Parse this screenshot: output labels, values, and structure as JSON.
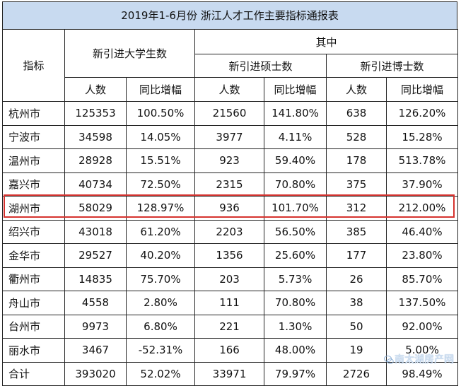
{
  "title": "2019年1-6月份 浙江人才工作主要指标通报表",
  "headers": {
    "indicator": "指标",
    "undergrad": "新引进大学生数",
    "of_which": "其中",
    "master": "新引进硕士数",
    "phd": "新引进博士数",
    "count": "人数",
    "yoy": "同比增幅"
  },
  "rows": [
    {
      "city": "杭州市",
      "ug": "125353",
      "ug_yoy": "100.50%",
      "ms": "21560",
      "ms_yoy": "141.80%",
      "phd": "638",
      "phd_yoy": "126.20%"
    },
    {
      "city": "宁波市",
      "ug": "34598",
      "ug_yoy": "14.05%",
      "ms": "3977",
      "ms_yoy": "4.11%",
      "phd": "528",
      "phd_yoy": "15.28%"
    },
    {
      "city": "温州市",
      "ug": "28928",
      "ug_yoy": "15.51%",
      "ms": "923",
      "ms_yoy": "59.40%",
      "phd": "178",
      "phd_yoy": "513.78%"
    },
    {
      "city": "嘉兴市",
      "ug": "40734",
      "ug_yoy": "72.50%",
      "ms": "2315",
      "ms_yoy": "70.80%",
      "phd": "375",
      "phd_yoy": "37.90%"
    },
    {
      "city": "湖州市",
      "ug": "58029",
      "ug_yoy": "128.97%",
      "ms": "936",
      "ms_yoy": "101.70%",
      "phd": "312",
      "phd_yoy": "212.00%"
    },
    {
      "city": "绍兴市",
      "ug": "43018",
      "ug_yoy": "61.20%",
      "ms": "2203",
      "ms_yoy": "56.50%",
      "phd": "385",
      "phd_yoy": "46.40%"
    },
    {
      "city": "金华市",
      "ug": "29527",
      "ug_yoy": "40.20%",
      "ms": "1356",
      "ms_yoy": "25.60%",
      "phd": "177",
      "phd_yoy": "23.80%"
    },
    {
      "city": "衢州市",
      "ug": "14835",
      "ug_yoy": "75.70%",
      "ms": "203",
      "ms_yoy": "5.73%",
      "phd": "26",
      "phd_yoy": "85.70%"
    },
    {
      "city": "舟山市",
      "ug": "4558",
      "ug_yoy": "2.80%",
      "ms": "111",
      "ms_yoy": "70.80%",
      "phd": "38",
      "phd_yoy": "137.50%"
    },
    {
      "city": "台州市",
      "ug": "9973",
      "ug_yoy": "6.80%",
      "ms": "221",
      "ms_yoy": "1.30%",
      "phd": "50",
      "phd_yoy": "92.00%"
    },
    {
      "city": "丽水市",
      "ug": "3467",
      "ug_yoy": "-52.31%",
      "ms": "166",
      "ms_yoy": "48.00%",
      "phd": "19",
      "phd_yoy": "5.00%"
    },
    {
      "city": "合计",
      "ug": "393020",
      "ug_yoy": "52.02%",
      "ms": "33971",
      "ms_yoy": "79.97%",
      "phd": "2726",
      "phd_yoy": "98.49%"
    }
  ],
  "highlight_color": "#d6332f",
  "title_bg": "#c8daf0",
  "watermark": "南太湖房产网"
}
